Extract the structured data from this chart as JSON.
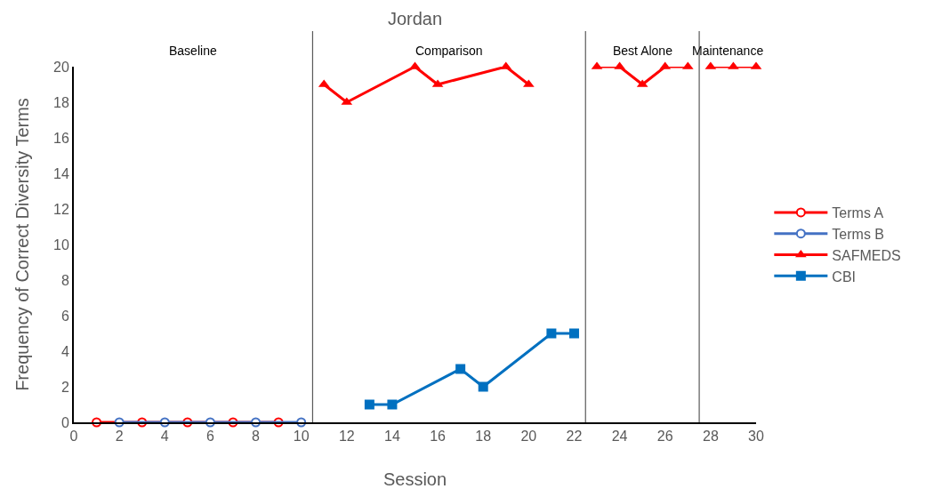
{
  "chart_data": {
    "type": "line",
    "title": "Jordan",
    "xlabel": "Session",
    "ylabel": "Frequency of Correct Diversity Terms",
    "xlim": [
      0,
      30
    ],
    "xticks": [
      0,
      2,
      4,
      6,
      8,
      10,
      12,
      14,
      16,
      18,
      20,
      22,
      24,
      26,
      28,
      30
    ],
    "ylim": [
      0,
      20
    ],
    "yticks": [
      0,
      2,
      4,
      6,
      8,
      10,
      12,
      14,
      16,
      18,
      20
    ],
    "grid": false,
    "legend": "right",
    "series": [
      {
        "name": "Terms A",
        "color": "#ff0000",
        "marker": "circle",
        "x": [
          1,
          3,
          5,
          7,
          9
        ],
        "values": [
          0,
          0,
          0,
          0,
          0
        ]
      },
      {
        "name": "Terms B",
        "color": "#4472c4",
        "marker": "circle",
        "x": [
          2,
          4,
          6,
          8,
          10
        ],
        "values": [
          0,
          0,
          0,
          0,
          0
        ]
      },
      {
        "name": "SAFMEDS",
        "color": "#ff0000",
        "marker": "triangle",
        "x": [
          11,
          12,
          15,
          16,
          19,
          20,
          21.5,
          23,
          24,
          25,
          26,
          27,
          27.5,
          28,
          29,
          30
        ],
        "values": [
          19,
          18,
          20,
          19,
          20,
          19,
          null,
          20,
          20,
          19,
          20,
          20,
          null,
          20,
          20,
          20
        ]
      },
      {
        "name": "CBI",
        "color": "#0070c0",
        "marker": "square",
        "x": [
          13,
          14,
          17,
          18,
          21,
          22
        ],
        "values": [
          1,
          1,
          3,
          2,
          5,
          5
        ]
      }
    ],
    "ref_lines": [
      {
        "axis": "x",
        "value": 10.5,
        "color": "#595959"
      },
      {
        "axis": "x",
        "value": 22.5,
        "color": "#595959"
      },
      {
        "axis": "x",
        "value": 27.5,
        "color": "#595959"
      }
    ],
    "annotations": [
      "Baseline",
      "Comparison",
      "Best Alone",
      "Maintenance"
    ]
  }
}
